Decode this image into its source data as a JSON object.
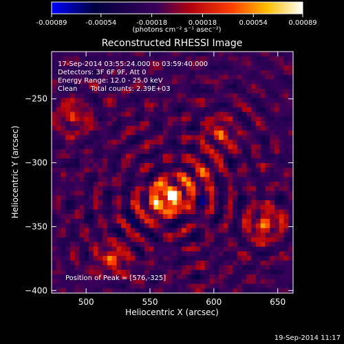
{
  "chart_data": {
    "type": "heatmap",
    "title": "Reconstructed RHESSI Image",
    "xlabel": "Heliocentric X (arcsec)",
    "ylabel": "Heliocentric Y (arcsec)",
    "xlim": [
      473,
      662
    ],
    "ylim": [
      -402,
      -213
    ],
    "x_ticks": [
      500,
      550,
      600,
      650
    ],
    "y_ticks": [
      -250,
      -300,
      -350,
      -400
    ],
    "colorbar": {
      "min": -0.00089,
      "max": 0.00089,
      "tick_values": [
        -0.00089,
        -0.00054,
        -0.00018,
        0.00018,
        0.00054,
        0.00089
      ],
      "tick_labels": [
        "-0.00089",
        "-0.00054",
        "-0.00018",
        "0.00018",
        "0.00054",
        "0.00089"
      ],
      "unit_label": "(photons cm⁻² s⁻¹ asec⁻²)"
    },
    "annotations": [
      "17-Sep-2014 03:55:24.000 to 03:59:40.000",
      "Detectors: 3F 6F 9F, Att 0",
      "Energy Range: 12.0 - 25.0 keV",
      "Clean      Total counts: 2.39E+03"
    ],
    "peak_label": "Position of Peak = [576,-325]",
    "peak": {
      "x": 576,
      "y": -325
    },
    "grid": false,
    "colormap": [
      "#0000ff",
      "#000000",
      "#7f1fff",
      "#ff0000",
      "#ffa500",
      "#ffff00",
      "#ffffff"
    ],
    "bright_sources": [
      {
        "x": 568,
        "y": -325,
        "strength": 1.0
      },
      {
        "x": 555,
        "y": -332,
        "strength": 0.55
      },
      {
        "x": 490,
        "y": -265,
        "strength": 0.45
      },
      {
        "x": 520,
        "y": -375,
        "strength": 0.5
      },
      {
        "x": 640,
        "y": -348,
        "strength": 0.6
      },
      {
        "x": 605,
        "y": -278,
        "strength": 0.45
      },
      {
        "x": 590,
        "y": -308,
        "strength": 0.4
      }
    ]
  },
  "footer": {
    "date": "19-Sep-2014 11:17"
  }
}
